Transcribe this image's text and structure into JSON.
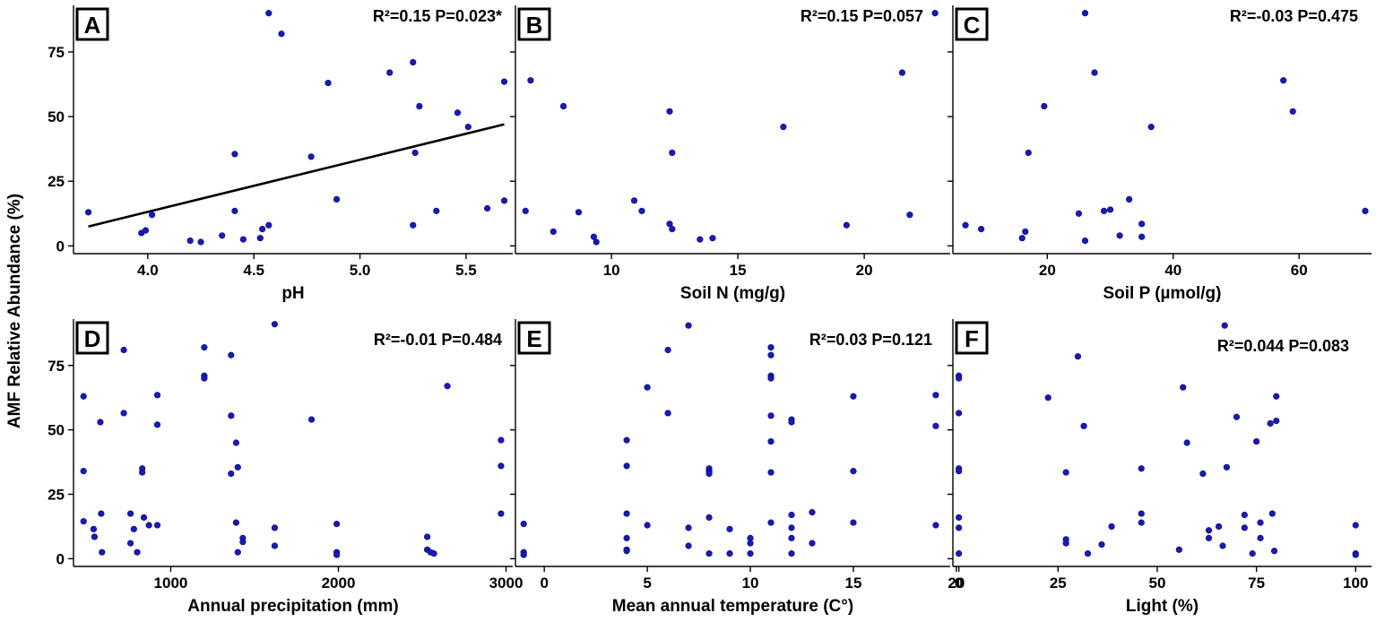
{
  "y_axis_label": "AMF Relative Abundance (%)",
  "chart_data": [
    {
      "type": "scatter",
      "panel": "A",
      "xlabel": "pH",
      "stat_text": "R²=0.15 P=0.023*",
      "xlim": [
        3.65,
        5.72
      ],
      "ylim": [
        -3,
        93
      ],
      "xticks": [
        4.0,
        4.5,
        5.0,
        5.5
      ],
      "xtick_labels": [
        "4.0",
        "4.5",
        "5.0",
        "5.5"
      ],
      "yticks": [
        0,
        25,
        50,
        75
      ],
      "ytick_labels": [
        "0",
        "25",
        "50",
        "75"
      ],
      "fit_line": {
        "x": [
          3.72,
          5.68
        ],
        "y": [
          7.5,
          47
        ]
      },
      "points": [
        {
          "x": 3.72,
          "y": 13
        },
        {
          "x": 3.97,
          "y": 5
        },
        {
          "x": 3.99,
          "y": 6
        },
        {
          "x": 4.02,
          "y": 12
        },
        {
          "x": 4.2,
          "y": 2
        },
        {
          "x": 4.25,
          "y": 1.5
        },
        {
          "x": 4.35,
          "y": 4
        },
        {
          "x": 4.41,
          "y": 13.5
        },
        {
          "x": 4.41,
          "y": 35.5
        },
        {
          "x": 4.45,
          "y": 2.5
        },
        {
          "x": 4.53,
          "y": 3
        },
        {
          "x": 4.54,
          "y": 6.5
        },
        {
          "x": 4.57,
          "y": 8
        },
        {
          "x": 4.57,
          "y": 90
        },
        {
          "x": 4.63,
          "y": 82
        },
        {
          "x": 4.77,
          "y": 34.5
        },
        {
          "x": 4.85,
          "y": 63
        },
        {
          "x": 4.89,
          "y": 18
        },
        {
          "x": 5.14,
          "y": 67
        },
        {
          "x": 5.25,
          "y": 71
        },
        {
          "x": 5.25,
          "y": 8
        },
        {
          "x": 5.26,
          "y": 36
        },
        {
          "x": 5.28,
          "y": 54
        },
        {
          "x": 5.36,
          "y": 13.5
        },
        {
          "x": 5.46,
          "y": 51.5
        },
        {
          "x": 5.51,
          "y": 46
        },
        {
          "x": 5.6,
          "y": 14.5
        },
        {
          "x": 5.68,
          "y": 63.5
        },
        {
          "x": 5.68,
          "y": 17.5
        }
      ]
    },
    {
      "type": "scatter",
      "panel": "B",
      "xlabel": "Soil N (mg/g)",
      "stat_text": "R²=0.15 P=0.057",
      "xlim": [
        6.2,
        23.4
      ],
      "ylim": [
        -3,
        93
      ],
      "xticks": [
        10,
        15,
        20
      ],
      "xtick_labels": [
        "10",
        "15",
        "20"
      ],
      "yticks": [
        0,
        25,
        50,
        75
      ],
      "ytick_labels": [
        "",
        "",
        "",
        ""
      ],
      "points": [
        {
          "x": 6.6,
          "y": 13.5
        },
        {
          "x": 6.8,
          "y": 64
        },
        {
          "x": 7.7,
          "y": 5.5
        },
        {
          "x": 8.1,
          "y": 54
        },
        {
          "x": 8.7,
          "y": 13
        },
        {
          "x": 9.3,
          "y": 3.5
        },
        {
          "x": 9.4,
          "y": 1.5
        },
        {
          "x": 10.9,
          "y": 17.5
        },
        {
          "x": 11.2,
          "y": 13.5
        },
        {
          "x": 12.3,
          "y": 52
        },
        {
          "x": 12.3,
          "y": 8.5
        },
        {
          "x": 12.4,
          "y": 6.5
        },
        {
          "x": 12.4,
          "y": 36
        },
        {
          "x": 13.5,
          "y": 2.5
        },
        {
          "x": 14,
          "y": 3
        },
        {
          "x": 16.8,
          "y": 46
        },
        {
          "x": 19.3,
          "y": 8
        },
        {
          "x": 21.5,
          "y": 67
        },
        {
          "x": 21.8,
          "y": 12
        },
        {
          "x": 22.8,
          "y": 90
        }
      ]
    },
    {
      "type": "scatter",
      "panel": "C",
      "xlabel": "Soil P (µmol/g)",
      "stat_text": "R²=-0.03 P=0.475",
      "xlim": [
        5,
        71.5
      ],
      "ylim": [
        -3,
        93
      ],
      "xticks": [
        20,
        40,
        60
      ],
      "xtick_labels": [
        "20",
        "40",
        "60"
      ],
      "yticks": [
        0,
        25,
        50,
        75
      ],
      "ytick_labels": [
        "",
        "",
        "",
        ""
      ],
      "points": [
        {
          "x": 7,
          "y": 8
        },
        {
          "x": 9.5,
          "y": 6.5
        },
        {
          "x": 16,
          "y": 3
        },
        {
          "x": 16.5,
          "y": 5.5
        },
        {
          "x": 17,
          "y": 36
        },
        {
          "x": 19.5,
          "y": 54
        },
        {
          "x": 25,
          "y": 12.5
        },
        {
          "x": 26,
          "y": 2
        },
        {
          "x": 26,
          "y": 90
        },
        {
          "x": 27.5,
          "y": 67
        },
        {
          "x": 29,
          "y": 13.5
        },
        {
          "x": 30,
          "y": 14
        },
        {
          "x": 31.5,
          "y": 4
        },
        {
          "x": 33,
          "y": 18
        },
        {
          "x": 35,
          "y": 8.5
        },
        {
          "x": 35,
          "y": 3.5
        },
        {
          "x": 36.5,
          "y": 46
        },
        {
          "x": 57.5,
          "y": 64
        },
        {
          "x": 59,
          "y": 52
        },
        {
          "x": 70.5,
          "y": 13.5
        }
      ]
    },
    {
      "type": "scatter",
      "panel": "D",
      "xlabel": "Annual precipitation (mm)",
      "stat_text": "R²=-0.01 P=0.484",
      "xlim": [
        420,
        3040
      ],
      "ylim": [
        -3,
        93
      ],
      "xticks": [
        1000,
        2000,
        3000
      ],
      "xtick_labels": [
        "1000",
        "2000",
        "3000"
      ],
      "yticks": [
        0,
        25,
        50,
        75
      ],
      "ytick_labels": [
        "0",
        "25",
        "50",
        "75"
      ],
      "points": [
        {
          "x": 480,
          "y": 63
        },
        {
          "x": 480,
          "y": 34
        },
        {
          "x": 480,
          "y": 14.5
        },
        {
          "x": 540,
          "y": 11.5
        },
        {
          "x": 545,
          "y": 8.5
        },
        {
          "x": 580,
          "y": 53
        },
        {
          "x": 585,
          "y": 17.5
        },
        {
          "x": 590,
          "y": 2.5
        },
        {
          "x": 720,
          "y": 81
        },
        {
          "x": 720,
          "y": 56.5
        },
        {
          "x": 760,
          "y": 17.5
        },
        {
          "x": 760,
          "y": 6
        },
        {
          "x": 780,
          "y": 11.5
        },
        {
          "x": 800,
          "y": 2.5
        },
        {
          "x": 830,
          "y": 35
        },
        {
          "x": 830,
          "y": 33.5
        },
        {
          "x": 840,
          "y": 16
        },
        {
          "x": 870,
          "y": 13
        },
        {
          "x": 920,
          "y": 63.5
        },
        {
          "x": 920,
          "y": 52
        },
        {
          "x": 920,
          "y": 13
        },
        {
          "x": 1200,
          "y": 82
        },
        {
          "x": 1200,
          "y": 71
        },
        {
          "x": 1200,
          "y": 70
        },
        {
          "x": 1360,
          "y": 79
        },
        {
          "x": 1360,
          "y": 55.5
        },
        {
          "x": 1360,
          "y": 33
        },
        {
          "x": 1390,
          "y": 45
        },
        {
          "x": 1390,
          "y": 14
        },
        {
          "x": 1400,
          "y": 35.5
        },
        {
          "x": 1400,
          "y": 2.5
        },
        {
          "x": 1430,
          "y": 8
        },
        {
          "x": 1430,
          "y": 6.5
        },
        {
          "x": 1620,
          "y": 91
        },
        {
          "x": 1620,
          "y": 12
        },
        {
          "x": 1620,
          "y": 5
        },
        {
          "x": 1840,
          "y": 54
        },
        {
          "x": 1990,
          "y": 13.5
        },
        {
          "x": 1990,
          "y": 2.5
        },
        {
          "x": 1990,
          "y": 1.5
        },
        {
          "x": 2530,
          "y": 8.5
        },
        {
          "x": 2530,
          "y": 3.5
        },
        {
          "x": 2550,
          "y": 2.5
        },
        {
          "x": 2570,
          "y": 2
        },
        {
          "x": 2650,
          "y": 67
        },
        {
          "x": 2970,
          "y": 46
        },
        {
          "x": 2970,
          "y": 36
        },
        {
          "x": 2970,
          "y": 17.5
        }
      ]
    },
    {
      "type": "scatter",
      "panel": "E",
      "xlabel": "Mean annual temperature (C°)",
      "stat_text": "R²=0.03 P=0.121",
      "xlim": [
        -1.4,
        19.7
      ],
      "ylim": [
        -3,
        93
      ],
      "xticks": [
        0,
        5,
        10,
        15,
        20
      ],
      "xtick_labels": [
        "0",
        "5",
        "10",
        "15",
        "20"
      ],
      "yticks": [
        0,
        25,
        50,
        75
      ],
      "ytick_labels": [
        "",
        "",
        "",
        ""
      ],
      "points": [
        {
          "x": -1,
          "y": 13.5
        },
        {
          "x": -1,
          "y": 2.5
        },
        {
          "x": -1,
          "y": 1.5
        },
        {
          "x": 4,
          "y": 46
        },
        {
          "x": 4,
          "y": 36
        },
        {
          "x": 4,
          "y": 17.5
        },
        {
          "x": 4,
          "y": 8
        },
        {
          "x": 4,
          "y": 3.5
        },
        {
          "x": 4,
          "y": 3
        },
        {
          "x": 5,
          "y": 66.5
        },
        {
          "x": 5,
          "y": 13
        },
        {
          "x": 6,
          "y": 81
        },
        {
          "x": 6,
          "y": 56.5
        },
        {
          "x": 7,
          "y": 90.5
        },
        {
          "x": 7,
          "y": 12
        },
        {
          "x": 7,
          "y": 5
        },
        {
          "x": 8,
          "y": 35
        },
        {
          "x": 8,
          "y": 34
        },
        {
          "x": 8,
          "y": 33
        },
        {
          "x": 8,
          "y": 16
        },
        {
          "x": 8,
          "y": 2
        },
        {
          "x": 9,
          "y": 11.5
        },
        {
          "x": 9,
          "y": 2
        },
        {
          "x": 10,
          "y": 8
        },
        {
          "x": 10,
          "y": 6
        },
        {
          "x": 10,
          "y": 2
        },
        {
          "x": 11,
          "y": 82
        },
        {
          "x": 11,
          "y": 79
        },
        {
          "x": 11,
          "y": 71
        },
        {
          "x": 11,
          "y": 70
        },
        {
          "x": 11,
          "y": 55.5
        },
        {
          "x": 11,
          "y": 45.5
        },
        {
          "x": 11,
          "y": 33.5
        },
        {
          "x": 11,
          "y": 14
        },
        {
          "x": 12,
          "y": 54
        },
        {
          "x": 12,
          "y": 53
        },
        {
          "x": 12,
          "y": 17
        },
        {
          "x": 12,
          "y": 12
        },
        {
          "x": 12,
          "y": 8
        },
        {
          "x": 12,
          "y": 2
        },
        {
          "x": 13,
          "y": 18
        },
        {
          "x": 13,
          "y": 6
        },
        {
          "x": 15,
          "y": 63
        },
        {
          "x": 15,
          "y": 34
        },
        {
          "x": 15,
          "y": 14
        },
        {
          "x": 19,
          "y": 63.5
        },
        {
          "x": 19,
          "y": 51.5
        },
        {
          "x": 19,
          "y": 13
        }
      ]
    },
    {
      "type": "scatter",
      "panel": "F",
      "xlabel": "Light (%)",
      "stat_text": "R²=0.044 P=0.083",
      "xlim": [
        -1.5,
        104
      ],
      "ylim": [
        -3,
        93
      ],
      "xticks": [
        0,
        25,
        50,
        75,
        100
      ],
      "xtick_labels": [
        "0",
        "25",
        "50",
        "75",
        "100"
      ],
      "yticks": [
        0,
        25,
        50,
        75
      ],
      "ytick_labels": [
        "",
        "",
        "",
        ""
      ],
      "points": [
        {
          "x": 0,
          "y": 71
        },
        {
          "x": 0,
          "y": 70
        },
        {
          "x": 0,
          "y": 56.5
        },
        {
          "x": 0,
          "y": 35
        },
        {
          "x": 0,
          "y": 34
        },
        {
          "x": 0,
          "y": 16
        },
        {
          "x": 0,
          "y": 12
        },
        {
          "x": 0,
          "y": 2
        },
        {
          "x": 22.5,
          "y": 62.5
        },
        {
          "x": 27,
          "y": 33.5
        },
        {
          "x": 27,
          "y": 7.5
        },
        {
          "x": 27,
          "y": 6
        },
        {
          "x": 30,
          "y": 78.5
        },
        {
          "x": 31.5,
          "y": 51.5
        },
        {
          "x": 32.5,
          "y": 2
        },
        {
          "x": 36,
          "y": 5.5
        },
        {
          "x": 38.5,
          "y": 12.5
        },
        {
          "x": 46,
          "y": 35
        },
        {
          "x": 46,
          "y": 17.5
        },
        {
          "x": 46,
          "y": 14
        },
        {
          "x": 55.5,
          "y": 3.5
        },
        {
          "x": 56.5,
          "y": 66.5
        },
        {
          "x": 57.5,
          "y": 45
        },
        {
          "x": 61.5,
          "y": 33
        },
        {
          "x": 63,
          "y": 11
        },
        {
          "x": 63,
          "y": 8
        },
        {
          "x": 65.5,
          "y": 12.5
        },
        {
          "x": 66.5,
          "y": 5
        },
        {
          "x": 67,
          "y": 90.5
        },
        {
          "x": 67.5,
          "y": 35.5
        },
        {
          "x": 70,
          "y": 55
        },
        {
          "x": 72,
          "y": 17
        },
        {
          "x": 72,
          "y": 12
        },
        {
          "x": 74,
          "y": 2
        },
        {
          "x": 75,
          "y": 45.5
        },
        {
          "x": 76,
          "y": 14
        },
        {
          "x": 76,
          "y": 8
        },
        {
          "x": 78.5,
          "y": 52.5
        },
        {
          "x": 79,
          "y": 17.5
        },
        {
          "x": 79.5,
          "y": 3
        },
        {
          "x": 80,
          "y": 63
        },
        {
          "x": 80,
          "y": 53.5
        },
        {
          "x": 100,
          "y": 13
        },
        {
          "x": 100,
          "y": 2
        },
        {
          "x": 100,
          "y": 1.5
        }
      ]
    }
  ]
}
